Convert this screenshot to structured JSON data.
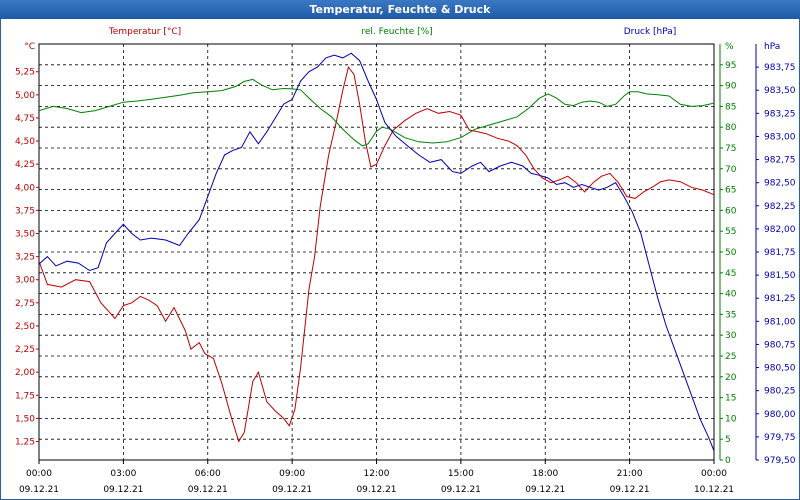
{
  "chart_data": {
    "type": "line",
    "title": "Temperatur, Feuchte & Druck",
    "legend": {
      "temperature": "Temperatur [°C]",
      "humidity": "rel. Feuchte [%]",
      "pressure": "Druck [hPa]"
    },
    "axes": {
      "temperature": {
        "unit": "°C",
        "ylim": [
          1.05,
          5.55
        ],
        "ticks": [
          "5,25",
          "5,00",
          "4,75",
          "4,50",
          "4,25",
          "4,00",
          "3,75",
          "3,50",
          "3,25",
          "3,00",
          "2,75",
          "2,50",
          "2,25",
          "2,00",
          "1,75",
          "1,50",
          "1,25"
        ],
        "tick_values": [
          5.25,
          5.0,
          4.75,
          4.5,
          4.25,
          4.0,
          3.75,
          3.5,
          3.25,
          3.0,
          2.75,
          2.5,
          2.25,
          2.0,
          1.75,
          1.5,
          1.25
        ]
      },
      "humidity": {
        "unit": "%",
        "ylim": [
          0,
          100
        ],
        "ticks": [
          "95",
          "90",
          "85",
          "80",
          "75",
          "70",
          "65",
          "60",
          "55",
          "50",
          "45",
          "40",
          "35",
          "30",
          "25",
          "20",
          "15",
          "10",
          "5",
          "0"
        ],
        "tick_values": [
          95,
          90,
          85,
          80,
          75,
          70,
          65,
          60,
          55,
          50,
          45,
          40,
          35,
          30,
          25,
          20,
          15,
          10,
          5,
          0
        ]
      },
      "pressure": {
        "unit": "hPa",
        "ylim": [
          979.5,
          984.0
        ],
        "ticks": [
          "983,75",
          "983,50",
          "983,25",
          "983,00",
          "982,75",
          "982,50",
          "982,25",
          "982,00",
          "981,75",
          "981,50",
          "981,25",
          "981,00",
          "980,75",
          "980,50",
          "980,25",
          "980,00",
          "979,75",
          "979,50"
        ],
        "tick_values": [
          983.75,
          983.5,
          983.25,
          983.0,
          982.75,
          982.5,
          982.25,
          982.0,
          981.75,
          981.5,
          981.25,
          981.0,
          980.75,
          980.5,
          980.25,
          980.0,
          979.75,
          979.5
        ]
      }
    },
    "x_ticks": [
      {
        "time": "00:00",
        "date": "09.12.21"
      },
      {
        "time": "03:00",
        "date": "09.12.21"
      },
      {
        "time": "06:00",
        "date": "09.12.21"
      },
      {
        "time": "09:00",
        "date": "09.12.21"
      },
      {
        "time": "12:00",
        "date": "09.12.21"
      },
      {
        "time": "15:00",
        "date": "09.12.21"
      },
      {
        "time": "18:00",
        "date": "09.12.21"
      },
      {
        "time": "21:00",
        "date": "09.12.21"
      },
      {
        "time": "00:00",
        "date": "10.12.21"
      }
    ],
    "xlim_hours": [
      0,
      24
    ],
    "grid": true,
    "series": [
      {
        "name": "Temperatur [°C]",
        "axis": "temperature",
        "color": "#c00000",
        "points": [
          [
            0,
            3.2
          ],
          [
            0.3,
            2.95
          ],
          [
            0.8,
            2.92
          ],
          [
            1.3,
            3.0
          ],
          [
            1.8,
            2.98
          ],
          [
            2.2,
            2.75
          ],
          [
            2.5,
            2.65
          ],
          [
            2.7,
            2.58
          ],
          [
            3.0,
            2.72
          ],
          [
            3.3,
            2.75
          ],
          [
            3.6,
            2.82
          ],
          [
            3.9,
            2.78
          ],
          [
            4.2,
            2.72
          ],
          [
            4.5,
            2.55
          ],
          [
            4.8,
            2.7
          ],
          [
            5.2,
            2.45
          ],
          [
            5.4,
            2.25
          ],
          [
            5.7,
            2.32
          ],
          [
            5.9,
            2.2
          ],
          [
            6.2,
            2.15
          ],
          [
            6.5,
            1.88
          ],
          [
            6.8,
            1.55
          ],
          [
            7.1,
            1.25
          ],
          [
            7.3,
            1.35
          ],
          [
            7.6,
            1.9
          ],
          [
            7.8,
            2.0
          ],
          [
            8.1,
            1.68
          ],
          [
            8.4,
            1.58
          ],
          [
            8.7,
            1.5
          ],
          [
            8.9,
            1.42
          ],
          [
            9.1,
            1.6
          ],
          [
            9.3,
            2.05
          ],
          [
            9.6,
            2.9
          ],
          [
            9.8,
            3.25
          ],
          [
            10.0,
            3.8
          ],
          [
            10.3,
            4.35
          ],
          [
            10.6,
            4.75
          ],
          [
            10.8,
            5.05
          ],
          [
            11.0,
            5.3
          ],
          [
            11.2,
            5.22
          ],
          [
            11.4,
            4.9
          ],
          [
            11.6,
            4.5
          ],
          [
            11.8,
            4.22
          ],
          [
            12.0,
            4.25
          ],
          [
            12.3,
            4.45
          ],
          [
            12.6,
            4.62
          ],
          [
            13.0,
            4.72
          ],
          [
            13.4,
            4.8
          ],
          [
            13.8,
            4.85
          ],
          [
            14.2,
            4.8
          ],
          [
            14.6,
            4.82
          ],
          [
            15.0,
            4.78
          ],
          [
            15.3,
            4.62
          ],
          [
            15.6,
            4.6
          ],
          [
            15.9,
            4.58
          ],
          [
            16.3,
            4.53
          ],
          [
            16.7,
            4.5
          ],
          [
            17.0,
            4.45
          ],
          [
            17.3,
            4.35
          ],
          [
            17.6,
            4.2
          ],
          [
            17.9,
            4.1
          ],
          [
            18.2,
            4.05
          ],
          [
            18.5,
            4.08
          ],
          [
            18.8,
            4.12
          ],
          [
            19.1,
            4.05
          ],
          [
            19.4,
            3.95
          ],
          [
            19.7,
            4.05
          ],
          [
            20.0,
            4.12
          ],
          [
            20.3,
            4.15
          ],
          [
            20.6,
            4.05
          ],
          [
            20.9,
            3.9
          ],
          [
            21.2,
            3.88
          ],
          [
            21.5,
            3.95
          ],
          [
            21.8,
            4.0
          ],
          [
            22.1,
            4.06
          ],
          [
            22.4,
            4.08
          ],
          [
            22.8,
            4.06
          ],
          [
            23.2,
            4.0
          ],
          [
            23.6,
            3.97
          ],
          [
            24.0,
            3.92
          ]
        ]
      },
      {
        "name": "rel. Feuchte [%]",
        "axis": "humidity",
        "color": "#008000",
        "points": [
          [
            0,
            84
          ],
          [
            0.5,
            85
          ],
          [
            1.0,
            84.5
          ],
          [
            1.5,
            83.5
          ],
          [
            2.0,
            84
          ],
          [
            2.5,
            85
          ],
          [
            3.0,
            86
          ],
          [
            3.5,
            86.3
          ],
          [
            4.0,
            86.7
          ],
          [
            4.5,
            87.2
          ],
          [
            5.0,
            87.7
          ],
          [
            5.5,
            88.3
          ],
          [
            6.0,
            88.5
          ],
          [
            6.5,
            88.8
          ],
          [
            7.0,
            89.8
          ],
          [
            7.3,
            91.0
          ],
          [
            7.6,
            91.5
          ],
          [
            7.9,
            90.2
          ],
          [
            8.3,
            89.0
          ],
          [
            8.7,
            89.3
          ],
          [
            9.0,
            89.2
          ],
          [
            9.3,
            89.0
          ],
          [
            9.6,
            87.0
          ],
          [
            10.0,
            84.5
          ],
          [
            10.4,
            82.5
          ],
          [
            10.8,
            79.5
          ],
          [
            11.2,
            77.0
          ],
          [
            11.5,
            75.5
          ],
          [
            11.7,
            76.0
          ],
          [
            12.0,
            79.0
          ],
          [
            12.2,
            80.0
          ],
          [
            12.5,
            79.5
          ],
          [
            13.0,
            77.5
          ],
          [
            13.5,
            76.5
          ],
          [
            14.0,
            76.2
          ],
          [
            14.5,
            76.5
          ],
          [
            15.0,
            77.5
          ],
          [
            15.5,
            79.5
          ],
          [
            16.0,
            80.5
          ],
          [
            16.5,
            81.5
          ],
          [
            17.0,
            82.5
          ],
          [
            17.4,
            84.5
          ],
          [
            17.8,
            87.0
          ],
          [
            18.1,
            88.0
          ],
          [
            18.4,
            87.0
          ],
          [
            18.7,
            85.5
          ],
          [
            19.0,
            85.2
          ],
          [
            19.3,
            86.0
          ],
          [
            19.6,
            86.3
          ],
          [
            19.9,
            86.0
          ],
          [
            20.2,
            85.0
          ],
          [
            20.5,
            85.5
          ],
          [
            20.8,
            87.5
          ],
          [
            21.0,
            88.5
          ],
          [
            21.3,
            88.5
          ],
          [
            21.6,
            88.0
          ],
          [
            22.0,
            87.8
          ],
          [
            22.4,
            87.5
          ],
          [
            22.8,
            85.5
          ],
          [
            23.2,
            85.0
          ],
          [
            23.6,
            85.2
          ],
          [
            24.0,
            85.8
          ]
        ]
      },
      {
        "name": "Druck [hPa]",
        "axis": "pressure",
        "color": "#0000b0",
        "points": [
          [
            0,
            981.62
          ],
          [
            0.3,
            981.7
          ],
          [
            0.6,
            981.6
          ],
          [
            1.0,
            981.65
          ],
          [
            1.4,
            981.63
          ],
          [
            1.8,
            981.55
          ],
          [
            2.1,
            981.58
          ],
          [
            2.4,
            981.85
          ],
          [
            2.7,
            981.95
          ],
          [
            3.0,
            982.05
          ],
          [
            3.3,
            981.95
          ],
          [
            3.6,
            981.88
          ],
          [
            4.0,
            981.9
          ],
          [
            4.5,
            981.88
          ],
          [
            5.0,
            981.82
          ],
          [
            5.3,
            981.95
          ],
          [
            5.7,
            982.1
          ],
          [
            6.0,
            982.35
          ],
          [
            6.3,
            982.6
          ],
          [
            6.6,
            982.8
          ],
          [
            6.9,
            982.85
          ],
          [
            7.2,
            982.88
          ],
          [
            7.5,
            983.05
          ],
          [
            7.8,
            982.92
          ],
          [
            8.1,
            983.05
          ],
          [
            8.4,
            983.2
          ],
          [
            8.7,
            983.35
          ],
          [
            9.0,
            983.4
          ],
          [
            9.3,
            983.6
          ],
          [
            9.6,
            983.7
          ],
          [
            9.9,
            983.75
          ],
          [
            10.2,
            983.85
          ],
          [
            10.5,
            983.88
          ],
          [
            10.8,
            983.85
          ],
          [
            11.1,
            983.9
          ],
          [
            11.4,
            983.82
          ],
          [
            11.7,
            983.6
          ],
          [
            12.0,
            983.4
          ],
          [
            12.3,
            983.15
          ],
          [
            12.7,
            983.0
          ],
          [
            13.1,
            982.9
          ],
          [
            13.5,
            982.8
          ],
          [
            13.9,
            982.72
          ],
          [
            14.3,
            982.75
          ],
          [
            14.7,
            982.62
          ],
          [
            15.0,
            982.6
          ],
          [
            15.4,
            982.68
          ],
          [
            15.7,
            982.72
          ],
          [
            16.0,
            982.62
          ],
          [
            16.4,
            982.68
          ],
          [
            16.8,
            982.72
          ],
          [
            17.2,
            982.68
          ],
          [
            17.5,
            982.6
          ],
          [
            17.8,
            982.58
          ],
          [
            18.1,
            982.55
          ],
          [
            18.4,
            982.48
          ],
          [
            18.7,
            982.5
          ],
          [
            19.0,
            982.45
          ],
          [
            19.3,
            982.48
          ],
          [
            19.6,
            982.45
          ],
          [
            19.9,
            982.42
          ],
          [
            20.2,
            982.45
          ],
          [
            20.5,
            982.5
          ],
          [
            20.8,
            982.35
          ],
          [
            21.1,
            982.18
          ],
          [
            21.4,
            981.95
          ],
          [
            21.7,
            981.6
          ],
          [
            22.0,
            981.25
          ],
          [
            22.3,
            980.95
          ],
          [
            22.6,
            980.7
          ],
          [
            22.9,
            980.45
          ],
          [
            23.2,
            980.2
          ],
          [
            23.5,
            979.95
          ],
          [
            23.8,
            979.75
          ],
          [
            24.0,
            979.6
          ]
        ]
      }
    ]
  }
}
